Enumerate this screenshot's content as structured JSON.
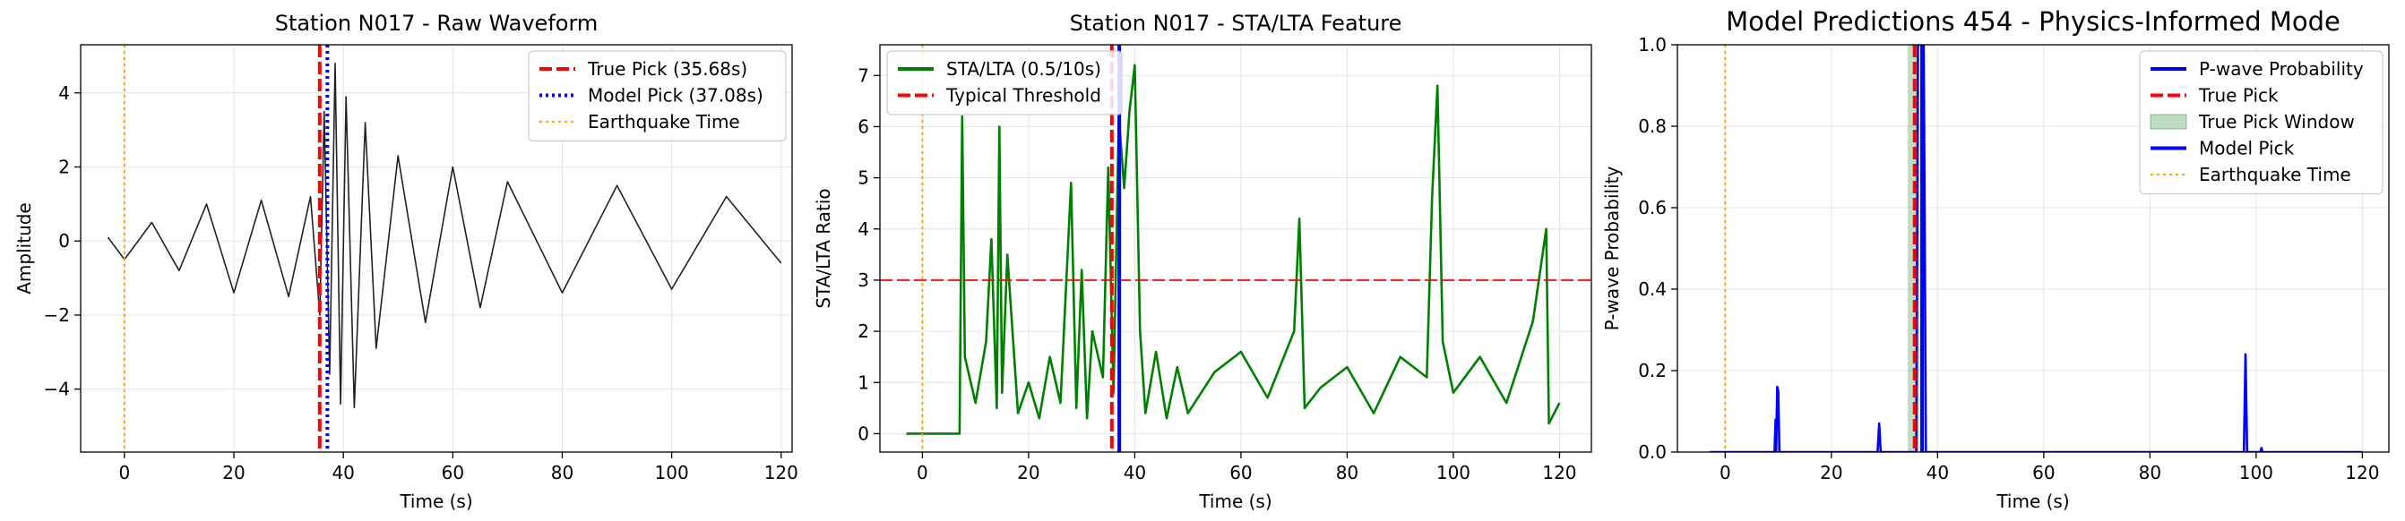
{
  "chart_data": [
    {
      "type": "line",
      "title": "Station N017 - Raw Waveform",
      "xlabel": "Time (s)",
      "ylabel": "Amplitude",
      "xlim": [
        -8,
        122
      ],
      "ylim": [
        -5.7,
        5.3
      ],
      "xticks": [
        0,
        20,
        40,
        60,
        80,
        100,
        120
      ],
      "yticks": [
        -4,
        -2,
        0,
        2,
        4
      ],
      "ytick_labels": [
        "−4",
        "−2",
        "0",
        "2",
        "4"
      ],
      "grid": true,
      "legend_position": "top-right",
      "series": [
        {
          "name": "Waveform",
          "color": "#222222",
          "style": "solid",
          "x": [
            -3,
            0,
            5,
            10,
            15,
            20,
            25,
            30,
            34,
            35.7,
            36.5,
            37.5,
            38.5,
            39.5,
            40.5,
            42,
            44,
            46,
            50,
            55,
            60,
            65,
            70,
            80,
            90,
            100,
            110,
            120
          ],
          "y": [
            0.1,
            -0.5,
            0.5,
            -0.8,
            1.0,
            -1.4,
            1.1,
            -1.5,
            1.2,
            -2.0,
            3.5,
            -3.6,
            4.8,
            -4.4,
            3.9,
            -4.5,
            3.2,
            -2.9,
            2.3,
            -2.2,
            2.0,
            -1.8,
            1.6,
            -1.4,
            1.5,
            -1.3,
            1.2,
            -0.6
          ]
        },
        {
          "name": "True Pick (35.68s)",
          "color": "#ff0000",
          "style": "dashed",
          "vline": 35.68
        },
        {
          "name": "Model Pick (37.08s)",
          "color": "#0000ff",
          "style": "dotted",
          "vline": 37.08
        },
        {
          "name": "Earthquake Time",
          "color": "#ffa500",
          "style": "dotted",
          "vline": 0
        }
      ]
    },
    {
      "type": "line",
      "title": "Station N017 - STA/LTA Feature",
      "xlabel": "Time (s)",
      "ylabel": "STA/LTA Ratio",
      "xlim": [
        -8,
        126
      ],
      "ylim": [
        -0.36,
        7.6
      ],
      "xticks": [
        0,
        20,
        40,
        60,
        80,
        100,
        120
      ],
      "yticks": [
        0,
        1,
        2,
        3,
        4,
        5,
        6,
        7
      ],
      "grid": true,
      "legend_position": "top-left",
      "series": [
        {
          "name": "STA/LTA (0.5/10s)",
          "color": "#008000",
          "style": "solid",
          "x": [
            -3,
            7,
            7.5,
            8,
            10,
            12,
            13,
            14,
            14.5,
            15,
            16,
            18,
            20,
            22,
            24,
            26,
            28,
            29,
            30,
            31,
            32,
            34,
            35,
            36,
            37,
            38,
            39,
            40,
            41,
            42,
            44,
            46,
            48,
            50,
            55,
            60,
            65,
            70,
            71,
            72,
            75,
            80,
            85,
            90,
            95,
            96,
            97,
            98,
            100,
            105,
            110,
            115,
            117.5,
            118,
            120
          ],
          "y": [
            0,
            0,
            6.2,
            1.5,
            0.6,
            1.8,
            3.8,
            0.5,
            6.0,
            0.8,
            3.5,
            0.4,
            1.0,
            0.3,
            1.5,
            0.6,
            4.9,
            0.5,
            3.2,
            0.3,
            2.0,
            1.1,
            5.2,
            0.8,
            6.2,
            4.8,
            6.3,
            7.2,
            2.0,
            0.4,
            1.6,
            0.3,
            1.3,
            0.4,
            1.2,
            1.6,
            0.7,
            2.0,
            4.2,
            0.5,
            0.9,
            1.3,
            0.4,
            1.5,
            1.1,
            4.6,
            6.8,
            1.8,
            0.8,
            1.5,
            0.6,
            2.2,
            4.0,
            0.2,
            0.6
          ]
        },
        {
          "name": "Typical Threshold",
          "color": "#ff0000",
          "style": "dashed",
          "hline": 3.0
        },
        {
          "name": "",
          "color": "#ff0000",
          "style": "dashed",
          "vline": 35.68
        },
        {
          "name": "",
          "color": "#0000ff",
          "style": "solid",
          "vline": 37.08
        },
        {
          "name": "",
          "color": "#ffa500",
          "style": "dotted",
          "vline": 0
        }
      ]
    },
    {
      "type": "line",
      "title": "Model Predictions 454 - Physics-Informed Mode",
      "xlabel": "Time (s)",
      "ylabel": "P-wave Probability",
      "xlim": [
        -9,
        125
      ],
      "ylim": [
        0,
        1.0
      ],
      "xticks": [
        0,
        20,
        40,
        60,
        80,
        100,
        120
      ],
      "yticks": [
        0.0,
        0.2,
        0.4,
        0.6,
        0.8,
        1.0
      ],
      "ytick_labels": [
        "0.0",
        "0.2",
        "0.4",
        "0.6",
        "0.8",
        "1.0"
      ],
      "grid": true,
      "legend_position": "top-right",
      "series": [
        {
          "name": "P-wave Probability",
          "color": "#0000ff",
          "style": "solid",
          "x": [
            -3,
            9.3,
            9.5,
            9.6,
            9.8,
            10.0,
            10.2,
            10.4,
            28.7,
            29.0,
            29.3,
            36.0,
            36.3,
            36.6,
            37.0,
            37.4,
            37.8,
            97.7,
            98.0,
            98.3,
            100.8,
            101.0,
            101.2,
            120
          ],
          "y": [
            0,
            0,
            0.08,
            0,
            0.16,
            0.15,
            0,
            0,
            0,
            0.07,
            0,
            0,
            1.0,
            1.0,
            1.0,
            1.0,
            0,
            0,
            0.24,
            0,
            0,
            0.01,
            0,
            0
          ]
        },
        {
          "name": "True Pick",
          "color": "#ff0000",
          "style": "dashed",
          "vline": 35.68
        },
        {
          "name": "True Pick Window",
          "color": "#2e8b2e",
          "style": "band",
          "band": [
            34.4,
            36.6
          ]
        },
        {
          "name": "Model Pick",
          "color": "#0000ff",
          "style": "solid",
          "vline": 37.08
        },
        {
          "name": "Earthquake Time",
          "color": "#ffa500",
          "style": "dotted",
          "vline": 0
        }
      ]
    }
  ]
}
